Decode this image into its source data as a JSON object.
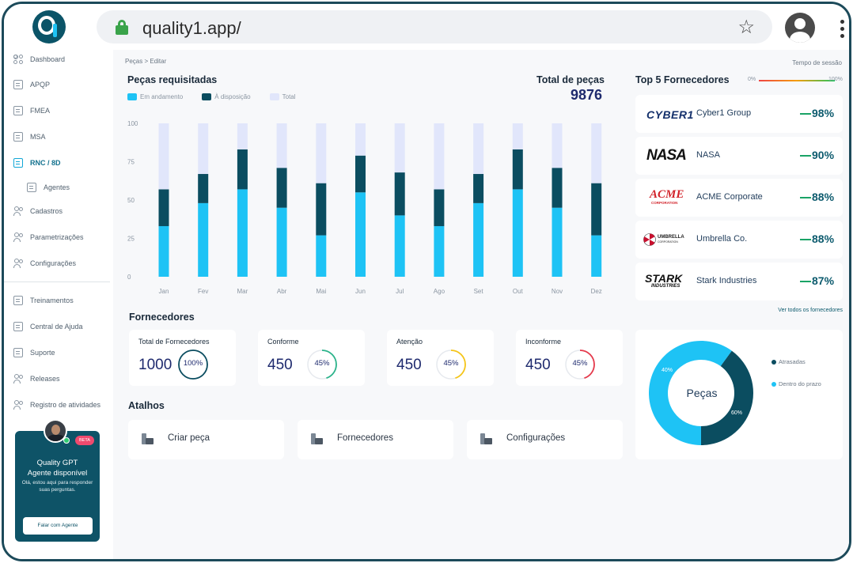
{
  "browser": {
    "url": "quality1.app/",
    "logo_text": "Q1"
  },
  "sidebar": {
    "items": [
      {
        "label": "Dashboard",
        "icon": "grid-icon"
      },
      {
        "label": "APQP",
        "icon": "document-icon"
      },
      {
        "label": "FMEA",
        "icon": "document-icon"
      },
      {
        "label": "MSA",
        "icon": "document-icon"
      },
      {
        "label": "RNC / 8D",
        "icon": "document-icon",
        "active": true
      },
      {
        "label": "Agentes",
        "icon": "document-icon",
        "sub": true
      },
      {
        "label": "Cadastros",
        "icon": "users-icon"
      },
      {
        "label": "Parametrizações",
        "icon": "users-icon"
      },
      {
        "label": "Configurações",
        "icon": "users-icon"
      },
      {
        "label": "Treinamentos",
        "icon": "document-icon"
      },
      {
        "label": "Central de Ajuda",
        "icon": "document-icon"
      },
      {
        "label": "Suporte",
        "icon": "document-icon"
      },
      {
        "label": "Releases",
        "icon": "users-icon"
      },
      {
        "label": "Registro de atividades",
        "icon": "users-icon"
      }
    ],
    "gpt": {
      "badge": "BETA",
      "title_line1": "Quality GPT",
      "title_line2": "Agente disponível",
      "text": "Olá, estou aqui para responder suas perguntas.",
      "button": "Falar com Agente"
    }
  },
  "header": {
    "breadcrumb": "Peças > Editar",
    "session": "Tempo de sessão"
  },
  "requested": {
    "title": "Peças requisitadas",
    "total_label": "Total de peças",
    "total_value": "9876"
  },
  "colors": {
    "em_andamento": "#1ec3f5",
    "a_disposicao": "#0b4d60",
    "total": "#e1e6fb",
    "navy": "#1e2a6e"
  },
  "chart_data": {
    "type": "bar",
    "stacked": true,
    "categories": [
      "Jan",
      "Fev",
      "Mar",
      "Abr",
      "Mai",
      "Jun",
      "Jul",
      "Ago",
      "Set",
      "Out",
      "Nov",
      "Dez"
    ],
    "series": [
      {
        "name": "Em andamento",
        "values": [
          33,
          48,
          57,
          45,
          27,
          55,
          40,
          33,
          48,
          57,
          45,
          27
        ]
      },
      {
        "name": "À disposição",
        "values": [
          24,
          19,
          26,
          26,
          34,
          24,
          28,
          24,
          19,
          26,
          26,
          34
        ]
      },
      {
        "name": "Total",
        "values": [
          43,
          33,
          17,
          29,
          39,
          21,
          32,
          43,
          33,
          17,
          29,
          39
        ]
      }
    ],
    "ylim": [
      0,
      100
    ],
    "yticks": [
      "100",
      "75",
      "50",
      "25",
      "0"
    ],
    "grid": false,
    "legend": "top-left"
  },
  "suppliers_stats": {
    "title": "Fornecedores",
    "cards": [
      {
        "label": "Total de Fornecedores",
        "value": "1000",
        "pct": "100%",
        "fraction": 1.0,
        "color": "#0b4d60"
      },
      {
        "label": "Conforme",
        "value": "450",
        "pct": "45%",
        "fraction": 0.45,
        "color": "#2bb38a"
      },
      {
        "label": "Atenção",
        "value": "450",
        "pct": "45%",
        "fraction": 0.45,
        "color": "#f5c518"
      },
      {
        "label": "Inconforme",
        "value": "450",
        "pct": "45%",
        "fraction": 0.45,
        "color": "#e5394b"
      }
    ]
  },
  "shortcuts": {
    "title": "Atalhos",
    "items": [
      "Criar peça",
      "Fornecedores",
      "Configurações"
    ]
  },
  "top_suppliers": {
    "title": "Top 5 Fornecedores",
    "scale_min": "0%",
    "scale_max": "100%",
    "see_all": "Ver todos os fornecedores",
    "items": [
      {
        "logo": "CYBER1",
        "name": "Cyber1 Group",
        "pct": "98%"
      },
      {
        "logo": "NASA",
        "name": "NASA",
        "pct": "90%"
      },
      {
        "logo": "ACME",
        "logo_sub": "CORPORATION",
        "name": "ACME Corporate",
        "pct": "88%"
      },
      {
        "logo": "UMBRELLA",
        "logo_sub": "CORPORATION",
        "name": "Umbrella Co.",
        "pct": "88%"
      },
      {
        "logo": "STARK",
        "logo_sub": "INDUSTRIES",
        "name": "Stark Industries",
        "pct": "87%"
      }
    ]
  },
  "donut": {
    "center": "Peças",
    "legend": [
      {
        "label": "Atrasadas",
        "pct": "40%",
        "value": 40,
        "color": "#0b4d60"
      },
      {
        "label": "Dentro do prazo",
        "pct": "60%",
        "value": 60,
        "color": "#1ec3f5"
      }
    ]
  }
}
